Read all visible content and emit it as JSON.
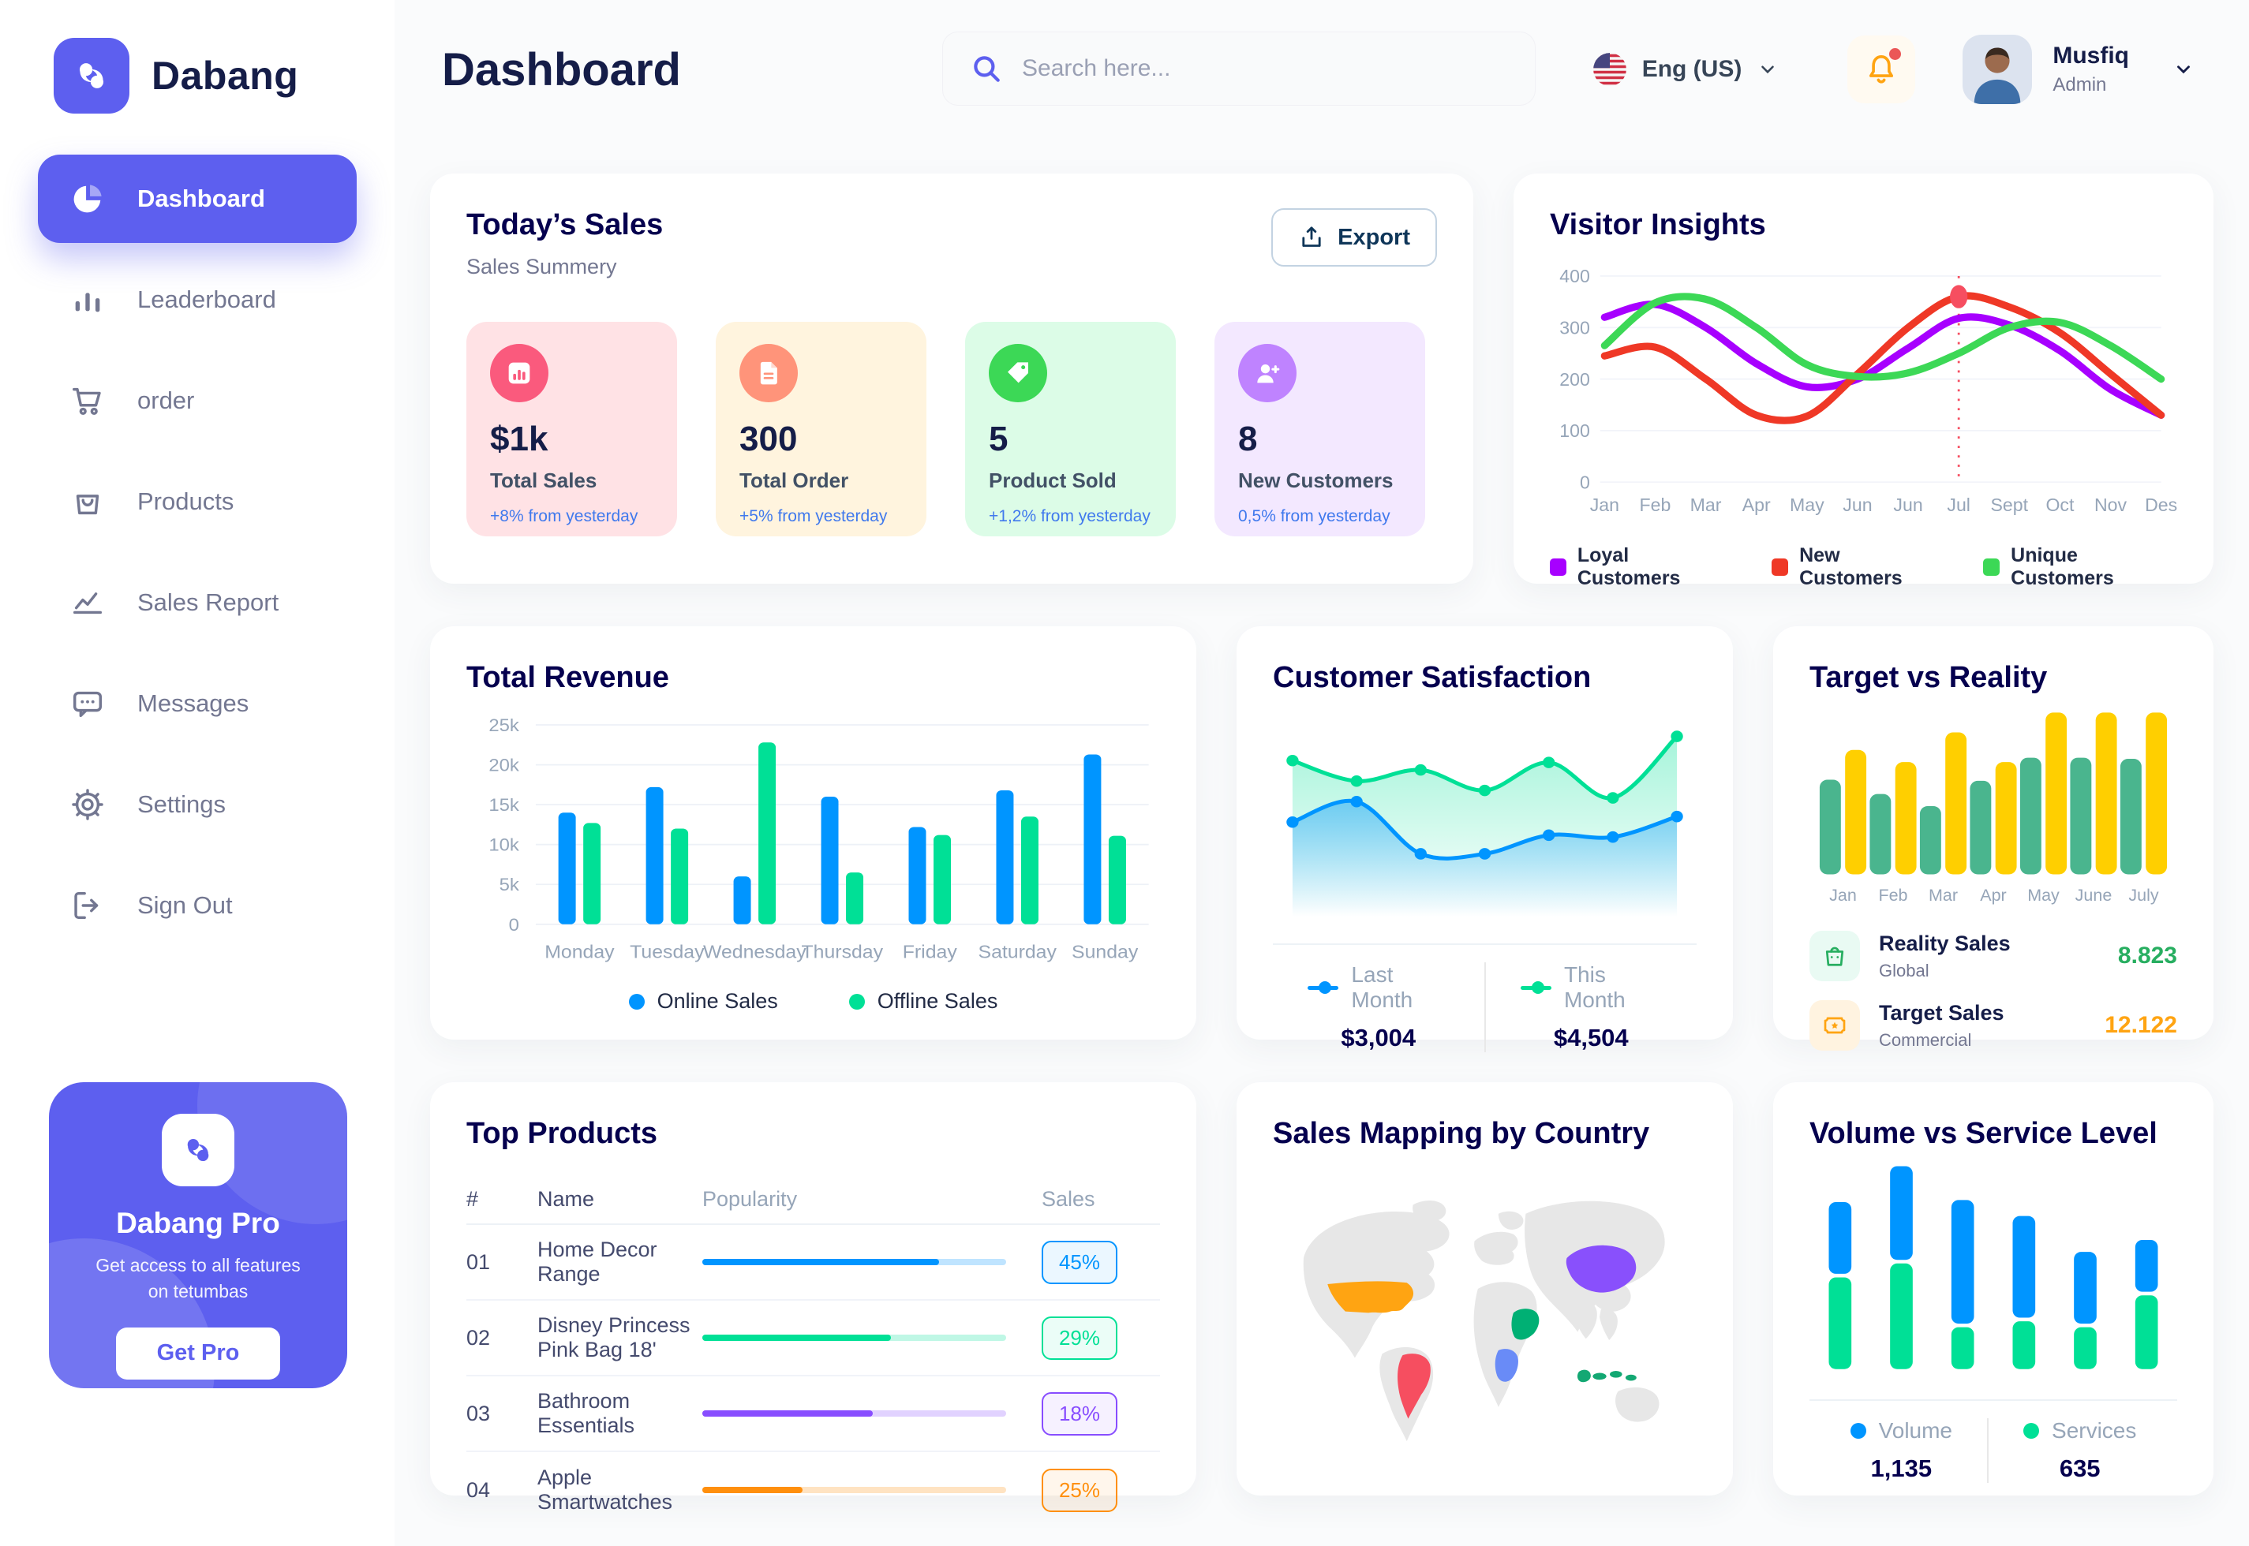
{
  "header": {
    "page_title": "Dashboard",
    "search": {
      "placeholder": "Search here..."
    },
    "language": {
      "label": "Eng (US)"
    },
    "user": {
      "name": "Musfiq",
      "role": "Admin"
    }
  },
  "sidebar": {
    "brand": "Dabang",
    "items": [
      {
        "label": "Dashboard",
        "icon": "pie-chart-icon",
        "active": true
      },
      {
        "label": "Leaderboard",
        "icon": "bar-chart-icon",
        "active": false
      },
      {
        "label": "order",
        "icon": "cart-icon",
        "active": false
      },
      {
        "label": "Products",
        "icon": "bag-icon",
        "active": false
      },
      {
        "label": "Sales Report",
        "icon": "line-chart-icon",
        "active": false
      },
      {
        "label": "Messages",
        "icon": "message-icon",
        "active": false
      },
      {
        "label": "Settings",
        "icon": "gear-icon",
        "active": false
      },
      {
        "label": "Sign Out",
        "icon": "sign-out-icon",
        "active": false
      }
    ],
    "pro_card": {
      "title": "Dabang Pro",
      "subtitle": "Get access to all features on tetumbas",
      "cta": "Get Pro"
    }
  },
  "today_sales": {
    "title": "Today’s Sales",
    "subtitle": "Sales Summery",
    "export_label": "Export",
    "cards": [
      {
        "value": "$1k",
        "label": "Total Sales",
        "delta": "+8% from yesterday",
        "bg": "#FFE2E5",
        "icon_bg": "#FA5A7D",
        "icon": "chart-bar-icon"
      },
      {
        "value": "300",
        "label": "Total Order",
        "delta": "+5% from yesterday",
        "bg": "#FFF4DE",
        "icon_bg": "#FF947A",
        "icon": "order-file-icon"
      },
      {
        "value": "5",
        "label": "Product Sold",
        "delta": "+1,2% from yesterday",
        "bg": "#DCFCE7",
        "icon_bg": "#3CD856",
        "icon": "tag-icon"
      },
      {
        "value": "8",
        "label": "New Customers",
        "delta": "0,5% from yesterday",
        "bg": "#F3E8FF",
        "icon_bg": "#BF83FF",
        "icon": "new-customer-icon"
      }
    ]
  },
  "chart_data": [
    {
      "id": "visitor_insights",
      "type": "line",
      "title": "Visitor Insights",
      "x": [
        "Jan",
        "Feb",
        "Mar",
        "Apr",
        "May",
        "Jun",
        "Jun",
        "Jul",
        "Sept",
        "Oct",
        "Nov",
        "Des"
      ],
      "ylim": [
        0,
        400
      ],
      "yticks": [
        0,
        100,
        200,
        300,
        400
      ],
      "grid": true,
      "legend_position": "bottom",
      "series": [
        {
          "name": "Loyal Customers",
          "color": "#A700FF",
          "values": [
            320,
            345,
            300,
            230,
            185,
            200,
            260,
            318,
            305,
            255,
            180,
            130
          ]
        },
        {
          "name": "New Customers",
          "color": "#EF3826",
          "values": [
            245,
            262,
            200,
            130,
            128,
            210,
            300,
            360,
            340,
            290,
            210,
            130
          ]
        },
        {
          "name": "Unique Customers",
          "color": "#3CD856",
          "values": [
            265,
            348,
            355,
            300,
            228,
            205,
            212,
            250,
            300,
            310,
            265,
            200
          ]
        }
      ],
      "highlight": {
        "series": "New Customers",
        "x_index": 7,
        "value": 360
      }
    },
    {
      "id": "total_revenue",
      "type": "bar",
      "title": "Total Revenue",
      "categories": [
        "Monday",
        "Tuesday",
        "Wednesday",
        "Thursday",
        "Friday",
        "Saturday",
        "Sunday"
      ],
      "ylim": [
        0,
        25000
      ],
      "yticks": [
        "0",
        "5k",
        "10k",
        "15k",
        "20k",
        "25k"
      ],
      "grid": true,
      "legend_position": "bottom",
      "series": [
        {
          "name": "Online Sales",
          "color": "#0095FF",
          "values": [
            14000,
            17200,
            6000,
            16000,
            12200,
            16800,
            21300
          ]
        },
        {
          "name": "Offline Sales",
          "color": "#00E096",
          "values": [
            12700,
            12000,
            22800,
            6500,
            11200,
            13500,
            11100
          ]
        }
      ]
    },
    {
      "id": "customer_satisfaction",
      "type": "area",
      "title": "Customer Satisfaction",
      "ylim": [
        0,
        100
      ],
      "legend_position": "bottom",
      "series": [
        {
          "name": "Last Month",
          "total": "$3,004",
          "color": "#0095FF",
          "values": [
            45,
            56,
            28,
            28,
            38,
            37,
            48
          ]
        },
        {
          "name": "This Month",
          "total": "$4,504",
          "color": "#00E096",
          "values": [
            78,
            67,
            73,
            62,
            77,
            58,
            91
          ]
        }
      ]
    },
    {
      "id": "target_vs_reality",
      "type": "bar",
      "title": "Target vs Reality",
      "categories": [
        "Jan",
        "Feb",
        "Mar",
        "Apr",
        "May",
        "June",
        "July"
      ],
      "ylim": [
        0,
        15
      ],
      "legend_position": "bottom",
      "series": [
        {
          "name": "Reality Sales",
          "subtitle": "Global",
          "total": "8.823",
          "color": "#4AB58E",
          "value_color": "#27AE60",
          "icon_bg": "#E9FAF3",
          "values": [
            8.6,
            7.3,
            6.2,
            8.5,
            10.6,
            10.6,
            10.5
          ]
        },
        {
          "name": "Target Sales",
          "subtitle": "Commercial",
          "total": "12.122",
          "color": "#FFCF00",
          "value_color": "#FFA412",
          "icon_bg": "#FFF3E0",
          "values": [
            11.3,
            10.2,
            12.9,
            10.2,
            14.7,
            14.7,
            14.7
          ]
        }
      ]
    },
    {
      "id": "volume_service",
      "type": "stacked-bar",
      "title": "Volume vs Service Level",
      "ylim": [
        0,
        100
      ],
      "legend_position": "bottom",
      "series": [
        {
          "name": "Volume",
          "total": "1,135",
          "color": "#0095FF",
          "values": [
            36,
            47,
            62,
            51,
            36,
            26
          ]
        },
        {
          "name": "Services",
          "total": "635",
          "color": "#00E096",
          "values": [
            46,
            53,
            21,
            24,
            21,
            37
          ]
        }
      ]
    }
  ],
  "top_products": {
    "title": "Top Products",
    "headers": [
      "#",
      "Name",
      "Popularity",
      "Sales"
    ],
    "rows": [
      {
        "num": "01",
        "name": "Home Decor Range",
        "popularity": 78,
        "sales": "45%",
        "color": "#0095FF"
      },
      {
        "num": "02",
        "name": "Disney Princess Pink Bag 18'",
        "popularity": 62,
        "sales": "29%",
        "color": "#00E096"
      },
      {
        "num": "03",
        "name": "Bathroom Essentials",
        "popularity": 56,
        "sales": "18%",
        "color": "#884DFF"
      },
      {
        "num": "04",
        "name": "Apple Smartwatches",
        "popularity": 33,
        "sales": "25%",
        "color": "#FF8F0D"
      }
    ]
  },
  "sales_map": {
    "title": "Sales Mapping by Country",
    "countries": [
      {
        "name": "United States",
        "color": "#FFA412"
      },
      {
        "name": "Brazil",
        "color": "#F64E60"
      },
      {
        "name": "Democratic Republic of Congo",
        "color": "#698BF7"
      },
      {
        "name": "Saudi Arabia",
        "color": "#00B074"
      },
      {
        "name": "China",
        "color": "#8950FC"
      },
      {
        "name": "Indonesia",
        "color": "#13A873"
      }
    ]
  }
}
